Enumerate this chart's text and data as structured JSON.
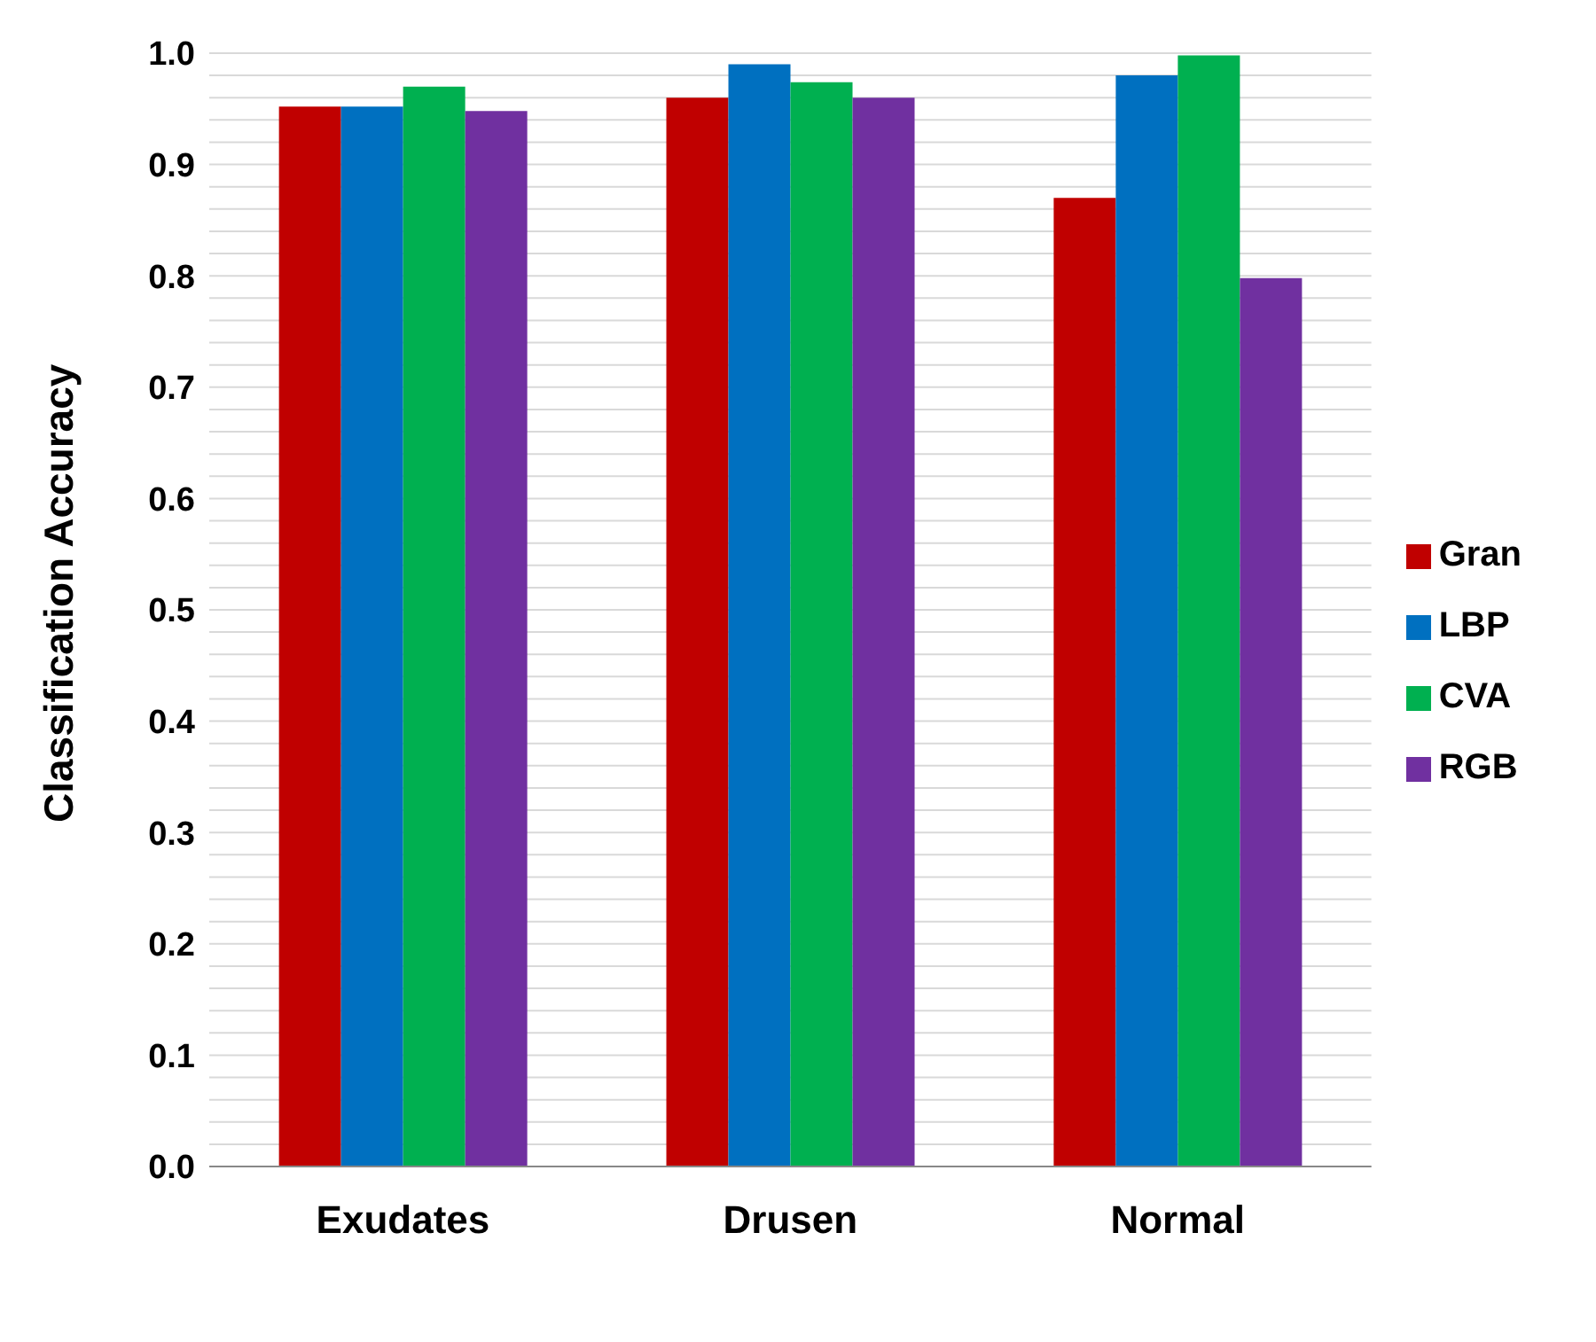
{
  "chart_data": {
    "type": "bar",
    "ylabel": "Classification Accuracy",
    "categories": [
      "Exudates",
      "Drusen",
      "Normal"
    ],
    "series": [
      {
        "name": "Gran",
        "color": "#c00000",
        "values": [
          0.952,
          0.96,
          0.87
        ]
      },
      {
        "name": "LBP",
        "color": "#0070c0",
        "values": [
          0.952,
          0.99,
          0.98
        ]
      },
      {
        "name": "CVA",
        "color": "#00b050",
        "values": [
          0.97,
          0.974,
          0.998
        ]
      },
      {
        "name": "RGB",
        "color": "#7030a0",
        "values": [
          0.948,
          0.96,
          0.798
        ]
      }
    ],
    "ylim": [
      0,
      1
    ],
    "yticks": [
      {
        "value": 0,
        "label": "0.0"
      },
      {
        "value": 0.02,
        "label": null
      },
      {
        "value": 0.04,
        "label": null
      },
      {
        "value": 0.06,
        "label": null
      },
      {
        "value": 0.08,
        "label": null
      },
      0.1,
      {
        "value": 0.12,
        "label": null
      },
      {
        "value": 0.14,
        "label": null
      },
      {
        "value": 0.16,
        "label": null
      },
      {
        "value": 0.18,
        "label": null
      },
      {
        "value": 0.2,
        "label": "0.2"
      },
      {
        "value": 0.22,
        "label": null
      },
      {
        "value": 0.24,
        "label": null
      },
      {
        "value": 0.26,
        "label": null
      },
      {
        "value": 0.28,
        "label": null
      },
      {
        "value": 0.3,
        "label": "0.3"
      },
      {
        "value": 0.32,
        "label": null
      },
      {
        "value": 0.34,
        "label": null
      },
      {
        "value": 0.36,
        "label": null
      },
      {
        "value": 0.38,
        "label": null
      },
      {
        "value": 0.4,
        "label": "0.4"
      },
      {
        "value": 0.42,
        "label": null
      },
      {
        "value": 0.44,
        "label": null
      },
      {
        "value": 0.46,
        "label": null
      },
      {
        "value": 0.48,
        "label": null
      },
      {
        "value": 0.5,
        "label": "0.5"
      },
      {
        "value": 0.52,
        "label": null
      },
      {
        "value": 0.54,
        "label": null
      },
      {
        "value": 0.56,
        "label": null
      },
      {
        "value": 0.58,
        "label": null
      },
      {
        "value": 0.6,
        "label": "0.6"
      },
      {
        "value": 0.62,
        "label": null
      },
      {
        "value": 0.64,
        "label": null
      },
      {
        "value": 0.66,
        "label": null
      },
      {
        "value": 0.68,
        "label": null
      },
      {
        "value": 0.7,
        "label": "0.7"
      },
      {
        "value": 0.72,
        "label": null
      },
      {
        "value": 0.74,
        "label": null
      },
      {
        "value": 0.76,
        "label": null
      },
      {
        "value": 0.78,
        "label": null
      },
      {
        "value": 0.8,
        "label": "0.8"
      },
      {
        "value": 0.82,
        "label": null
      },
      {
        "value": 0.84,
        "label": null
      },
      {
        "value": 0.86,
        "label": null
      },
      {
        "value": 0.88,
        "label": null
      },
      {
        "value": 0.9,
        "label": "0.9"
      },
      {
        "value": 0.92,
        "label": null
      },
      {
        "value": 0.94,
        "label": null
      },
      {
        "value": 0.96,
        "label": null
      },
      {
        "value": 0.98,
        "label": null
      },
      {
        "value": 1,
        "label": "1.0"
      }
    ],
    "grid": "y",
    "legend": "right"
  }
}
